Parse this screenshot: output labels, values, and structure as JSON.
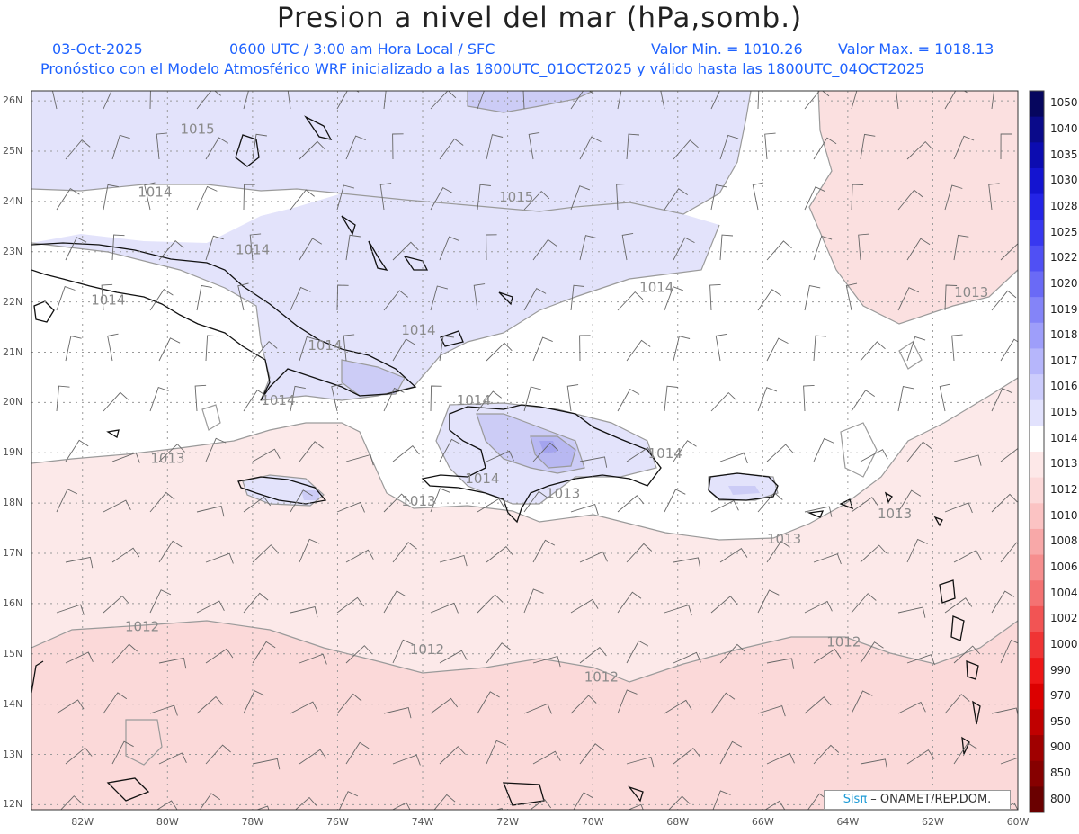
{
  "header": {
    "title": "Presion a nivel del mar (hPa,somb.)",
    "date": "03-Oct-2025",
    "time_info": "0600 UTC / 3:00 am Hora Local / SFC",
    "min_value": "Valor Min. = 1010.26",
    "max_value": "Valor Max. = 1018.13",
    "forecast_info": "Pronóstico con el Modelo Atmosférico WRF inicializado a las 1800UTC_01OCT2025 y válido hasta las  1800UTC_04OCT2025"
  },
  "map": {
    "lat_labels": [
      "26N",
      "25N",
      "24N",
      "23N",
      "22N",
      "21N",
      "20N",
      "19N",
      "18N",
      "17N",
      "16N",
      "15N",
      "14N",
      "13N",
      "12N"
    ],
    "lon_labels": [
      "82W",
      "80W",
      "78W",
      "76W",
      "74W",
      "72W",
      "70W",
      "68W",
      "66W",
      "64W",
      "62W",
      "60W"
    ],
    "isobar_labels": [
      {
        "text": "1015",
        "lon": -79.7,
        "lat": 25.35
      },
      {
        "text": "1014",
        "lon": -80.7,
        "lat": 24.1
      },
      {
        "text": "1015",
        "lon": -72.2,
        "lat": 24.0
      },
      {
        "text": "1014",
        "lon": -78.4,
        "lat": 22.95
      },
      {
        "text": "1014",
        "lon": -68.9,
        "lat": 22.2
      },
      {
        "text": "1014",
        "lon": -81.8,
        "lat": 21.95
      },
      {
        "text": "1014",
        "lon": -74.5,
        "lat": 21.35
      },
      {
        "text": "1014",
        "lon": -76.7,
        "lat": 21.05
      },
      {
        "text": "1013",
        "lon": -61.5,
        "lat": 22.1
      },
      {
        "text": "1014",
        "lon": -77.8,
        "lat": 19.95
      },
      {
        "text": "1014",
        "lon": -73.2,
        "lat": 19.95
      },
      {
        "text": "1013",
        "lon": -80.4,
        "lat": 18.8
      },
      {
        "text": "1014",
        "lon": -68.7,
        "lat": 18.9
      },
      {
        "text": "1014",
        "lon": -73.0,
        "lat": 18.4
      },
      {
        "text": "1013",
        "lon": -71.1,
        "lat": 18.1
      },
      {
        "text": "1013",
        "lon": -74.5,
        "lat": 17.95
      },
      {
        "text": "1013",
        "lon": -63.3,
        "lat": 17.7
      },
      {
        "text": "1013",
        "lon": -65.9,
        "lat": 17.2
      },
      {
        "text": "1012",
        "lon": -81.0,
        "lat": 15.45
      },
      {
        "text": "1012",
        "lon": -74.3,
        "lat": 15.0
      },
      {
        "text": "1012",
        "lon": -64.5,
        "lat": 15.15
      },
      {
        "text": "1012",
        "lon": -70.2,
        "lat": 14.45
      }
    ]
  },
  "colorbar": {
    "labels": [
      "1050",
      "1040",
      "1035",
      "1030",
      "1028",
      "1025",
      "1022",
      "1020",
      "1019",
      "1018",
      "1017",
      "1016",
      "1015",
      "1014",
      "1013",
      "1012",
      "1010",
      "1008",
      "1006",
      "1004",
      "1002",
      "1000",
      "990",
      "970",
      "950",
      "900",
      "850",
      "800"
    ],
    "colors": [
      "#06065e",
      "#0a0a8a",
      "#0c0cb0",
      "#1414d0",
      "#2424e6",
      "#3838f0",
      "#5050f4",
      "#6a6af6",
      "#8484f8",
      "#9e9efa",
      "#b6b6fb",
      "#ccccfc",
      "#e2e2fd",
      "#ffffff",
      "#fde8e8",
      "#fcd9d9",
      "#fbc3c3",
      "#f8a8a8",
      "#f68e8e",
      "#f47272",
      "#f25454",
      "#f03434",
      "#ee1616",
      "#dc0000",
      "#c00000",
      "#a00000",
      "#860000",
      "#6a0000"
    ]
  },
  "credit": {
    "brand": "Sisπ",
    "org": " – ONAMET/REP.DOM."
  }
}
